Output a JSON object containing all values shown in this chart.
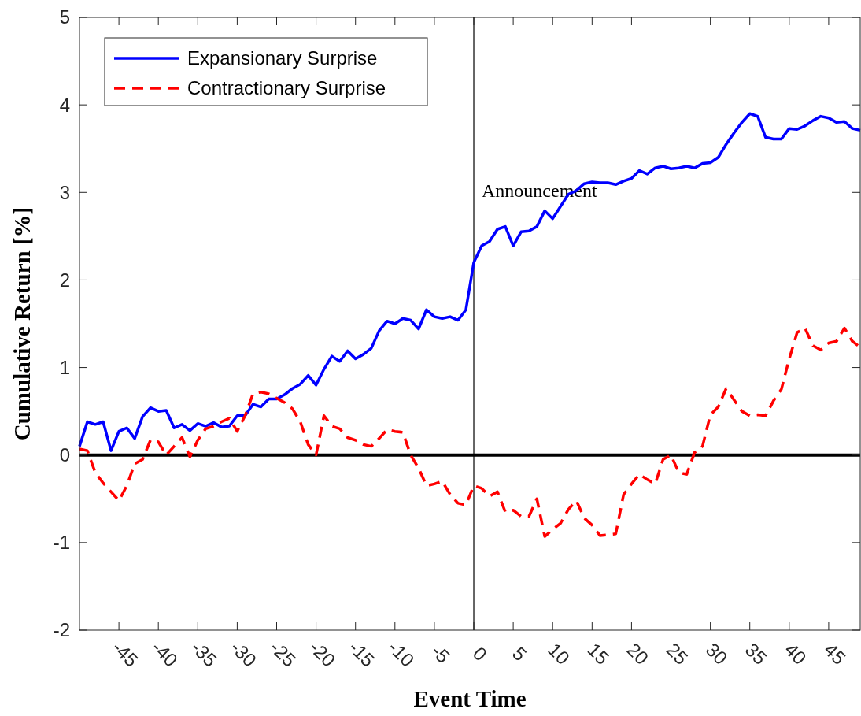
{
  "chart_data": {
    "type": "line",
    "xlabel": "Event Time",
    "ylabel": "Cumulative Return [%]",
    "xlim": [
      -50,
      49
    ],
    "ylim": [
      -2,
      5
    ],
    "xticks": [
      -45,
      -40,
      -35,
      -30,
      -25,
      -20,
      -15,
      -10,
      -5,
      0,
      5,
      10,
      15,
      20,
      25,
      30,
      35,
      40,
      45
    ],
    "yticks": [
      -2,
      -1,
      0,
      1,
      2,
      3,
      4,
      5
    ],
    "x": [
      -50,
      -49,
      -48,
      -47,
      -46,
      -45,
      -44,
      -43,
      -42,
      -41,
      -40,
      -39,
      -38,
      -37,
      -36,
      -35,
      -34,
      -33,
      -32,
      -31,
      -30,
      -29,
      -28,
      -27,
      -26,
      -25,
      -24,
      -23,
      -22,
      -21,
      -20,
      -19,
      -18,
      -17,
      -16,
      -15,
      -14,
      -13,
      -12,
      -11,
      -10,
      -9,
      -8,
      -7,
      -6,
      -5,
      -4,
      -3,
      -2,
      -1,
      0,
      1,
      2,
      3,
      4,
      5,
      6,
      7,
      8,
      9,
      10,
      11,
      12,
      13,
      14,
      15,
      16,
      17,
      18,
      19,
      20,
      21,
      22,
      23,
      24,
      25,
      26,
      27,
      28,
      29,
      30,
      31,
      32,
      33,
      34,
      35,
      36,
      37,
      38,
      39,
      40,
      41,
      42,
      43,
      44,
      45,
      46,
      47,
      48,
      49
    ],
    "series": [
      {
        "name": "Expansionary Surprise",
        "color": "#0000ff",
        "line_style": "solid",
        "values": [
          0.1,
          0.38,
          0.35,
          0.38,
          0.05,
          0.27,
          0.31,
          0.19,
          0.44,
          0.54,
          0.5,
          0.51,
          0.31,
          0.35,
          0.28,
          0.36,
          0.33,
          0.37,
          0.32,
          0.33,
          0.45,
          0.45,
          0.58,
          0.55,
          0.64,
          0.64,
          0.69,
          0.76,
          0.81,
          0.91,
          0.8,
          0.98,
          1.13,
          1.07,
          1.19,
          1.1,
          1.15,
          1.22,
          1.42,
          1.53,
          1.5,
          1.56,
          1.54,
          1.44,
          1.66,
          1.58,
          1.56,
          1.58,
          1.54,
          1.66,
          2.2,
          2.39,
          2.44,
          2.58,
          2.61,
          2.39,
          2.55,
          2.56,
          2.61,
          2.79,
          2.7,
          2.84,
          2.98,
          3.02,
          3.1,
          3.12,
          3.11,
          3.11,
          3.09,
          3.13,
          3.16,
          3.25,
          3.21,
          3.28,
          3.3,
          3.27,
          3.28,
          3.3,
          3.28,
          3.33,
          3.34,
          3.4,
          3.55,
          3.68,
          3.8,
          3.9,
          3.87,
          3.63,
          3.61,
          3.61,
          3.73,
          3.72,
          3.76,
          3.82,
          3.87,
          3.85,
          3.8,
          3.81,
          3.73,
          3.71
        ]
      },
      {
        "name": "Contractionary Surprise",
        "color": "#ff0000",
        "line_style": "dashed",
        "values": [
          0.07,
          0.05,
          -0.2,
          -0.32,
          -0.42,
          -0.52,
          -0.35,
          -0.1,
          -0.05,
          0.17,
          0.15,
          0.0,
          0.1,
          0.2,
          -0.02,
          0.17,
          0.3,
          0.33,
          0.38,
          0.42,
          0.27,
          0.45,
          0.7,
          0.72,
          0.7,
          0.65,
          0.6,
          0.53,
          0.38,
          0.12,
          0.0,
          0.45,
          0.33,
          0.3,
          0.2,
          0.17,
          0.12,
          0.1,
          0.19,
          0.29,
          0.27,
          0.26,
          0.0,
          -0.15,
          -0.35,
          -0.33,
          -0.3,
          -0.45,
          -0.55,
          -0.57,
          -0.35,
          -0.38,
          -0.47,
          -0.42,
          -0.65,
          -0.63,
          -0.7,
          -0.7,
          -0.5,
          -0.93,
          -0.85,
          -0.78,
          -0.62,
          -0.52,
          -0.72,
          -0.8,
          -0.92,
          -0.91,
          -0.9,
          -0.45,
          -0.33,
          -0.22,
          -0.28,
          -0.33,
          -0.05,
          0.0,
          -0.2,
          -0.22,
          0.03,
          0.1,
          0.46,
          0.55,
          0.76,
          0.63,
          0.5,
          0.45,
          0.46,
          0.45,
          0.62,
          0.75,
          1.1,
          1.4,
          1.45,
          1.25,
          1.2,
          1.28,
          1.3,
          1.45,
          1.3,
          1.23
        ]
      }
    ],
    "ref_lines": [
      {
        "axis": "y",
        "value": 0,
        "color": "#000000"
      },
      {
        "axis": "x",
        "value": 0,
        "label": "Announcement",
        "color": "#000000"
      }
    ],
    "legend": "top left",
    "grid": false
  }
}
